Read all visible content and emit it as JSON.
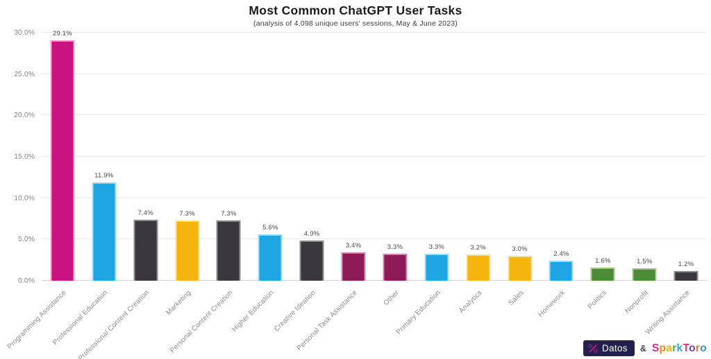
{
  "header": {
    "title": "Most Common ChatGPT User Tasks",
    "subtitle": "(analysis of 4,098 unique users' sessions, May & June 2023)"
  },
  "chart_data": {
    "type": "bar",
    "title": "Most Common ChatGPT User Tasks",
    "subtitle": "(analysis of 4,098 unique users' sessions, May & June 2023)",
    "categories": [
      "Programming Assistance",
      "Professional Education",
      "Professional Content Creation",
      "Marketing",
      "Personal Content Creation",
      "Higher Education",
      "Creative Ideation",
      "Personal Task Assistance",
      "Other",
      "Primary Education",
      "Analytics",
      "Sales",
      "Homework",
      "Politics",
      "Nonprofit",
      "Writing Assistance"
    ],
    "values": [
      29.1,
      11.9,
      7.4,
      7.3,
      7.3,
      5.6,
      4.9,
      3.4,
      3.3,
      3.3,
      3.2,
      3.0,
      2.4,
      1.6,
      1.5,
      1.2
    ],
    "value_labels": [
      "29.1%",
      "11.9%",
      "7.4%",
      "7.3%",
      "7.3%",
      "5.6%",
      "4.9%",
      "3.4%",
      "3.3%",
      "3.3%",
      "3.2%",
      "3.0%",
      "2.4%",
      "1.6%",
      "1.5%",
      "1.2%"
    ],
    "bar_colors": [
      "#cb1380",
      "#1ea6e4",
      "#3a383c",
      "#f6b40e",
      "#3a383c",
      "#1ea6e4",
      "#3a383c",
      "#8e1a58",
      "#8e1a58",
      "#1ea6e4",
      "#f6b40e",
      "#f6b40e",
      "#1ea6e4",
      "#4e8b36",
      "#4e8b36",
      "#3a383c"
    ],
    "bar_border_colors": [
      "#f0a6d2",
      "#a9def5",
      "#8f8e93",
      "#fbe09a",
      "#8f8e93",
      "#a9def5",
      "#8f8e93",
      "#cd8fb2",
      "#cd8fb2",
      "#a9def5",
      "#fbe09a",
      "#fbe09a",
      "#a9def5",
      "#a3cb90",
      "#a3cb90",
      "#8f8e93"
    ],
    "xlabel": "",
    "ylabel": "",
    "ylim": [
      0,
      30
    ],
    "yticks": [
      {
        "label": "0.0%",
        "value": 0
      },
      {
        "label": "5.0%",
        "value": 5
      },
      {
        "label": "10.0%",
        "value": 10
      },
      {
        "label": "15.0%",
        "value": 15
      },
      {
        "label": "20.0%",
        "value": 20
      },
      {
        "label": "25.0%",
        "value": 25
      },
      {
        "label": "30.0%",
        "value": 30
      }
    ],
    "grid": true,
    "legend": false
  },
  "footer": {
    "datos_label": "Datos",
    "datos_badge_color": "#23204f",
    "datos_icon_color": "#e0218a",
    "ampersand": "&",
    "sparktoro_letters": [
      {
        "ch": "S",
        "color": "#e8257d"
      },
      {
        "ch": "p",
        "color": "#f0861c"
      },
      {
        "ch": "a",
        "color": "#d2bc1d"
      },
      {
        "ch": "r",
        "color": "#58a839"
      },
      {
        "ch": "k",
        "color": "#2fa8dd"
      },
      {
        "ch": "T",
        "color": "#e8327c"
      },
      {
        "ch": "o",
        "color": "#7d3f9d"
      },
      {
        "ch": "r",
        "color": "#ef7d23"
      },
      {
        "ch": "o",
        "color": "#3f8fd4"
      }
    ]
  }
}
